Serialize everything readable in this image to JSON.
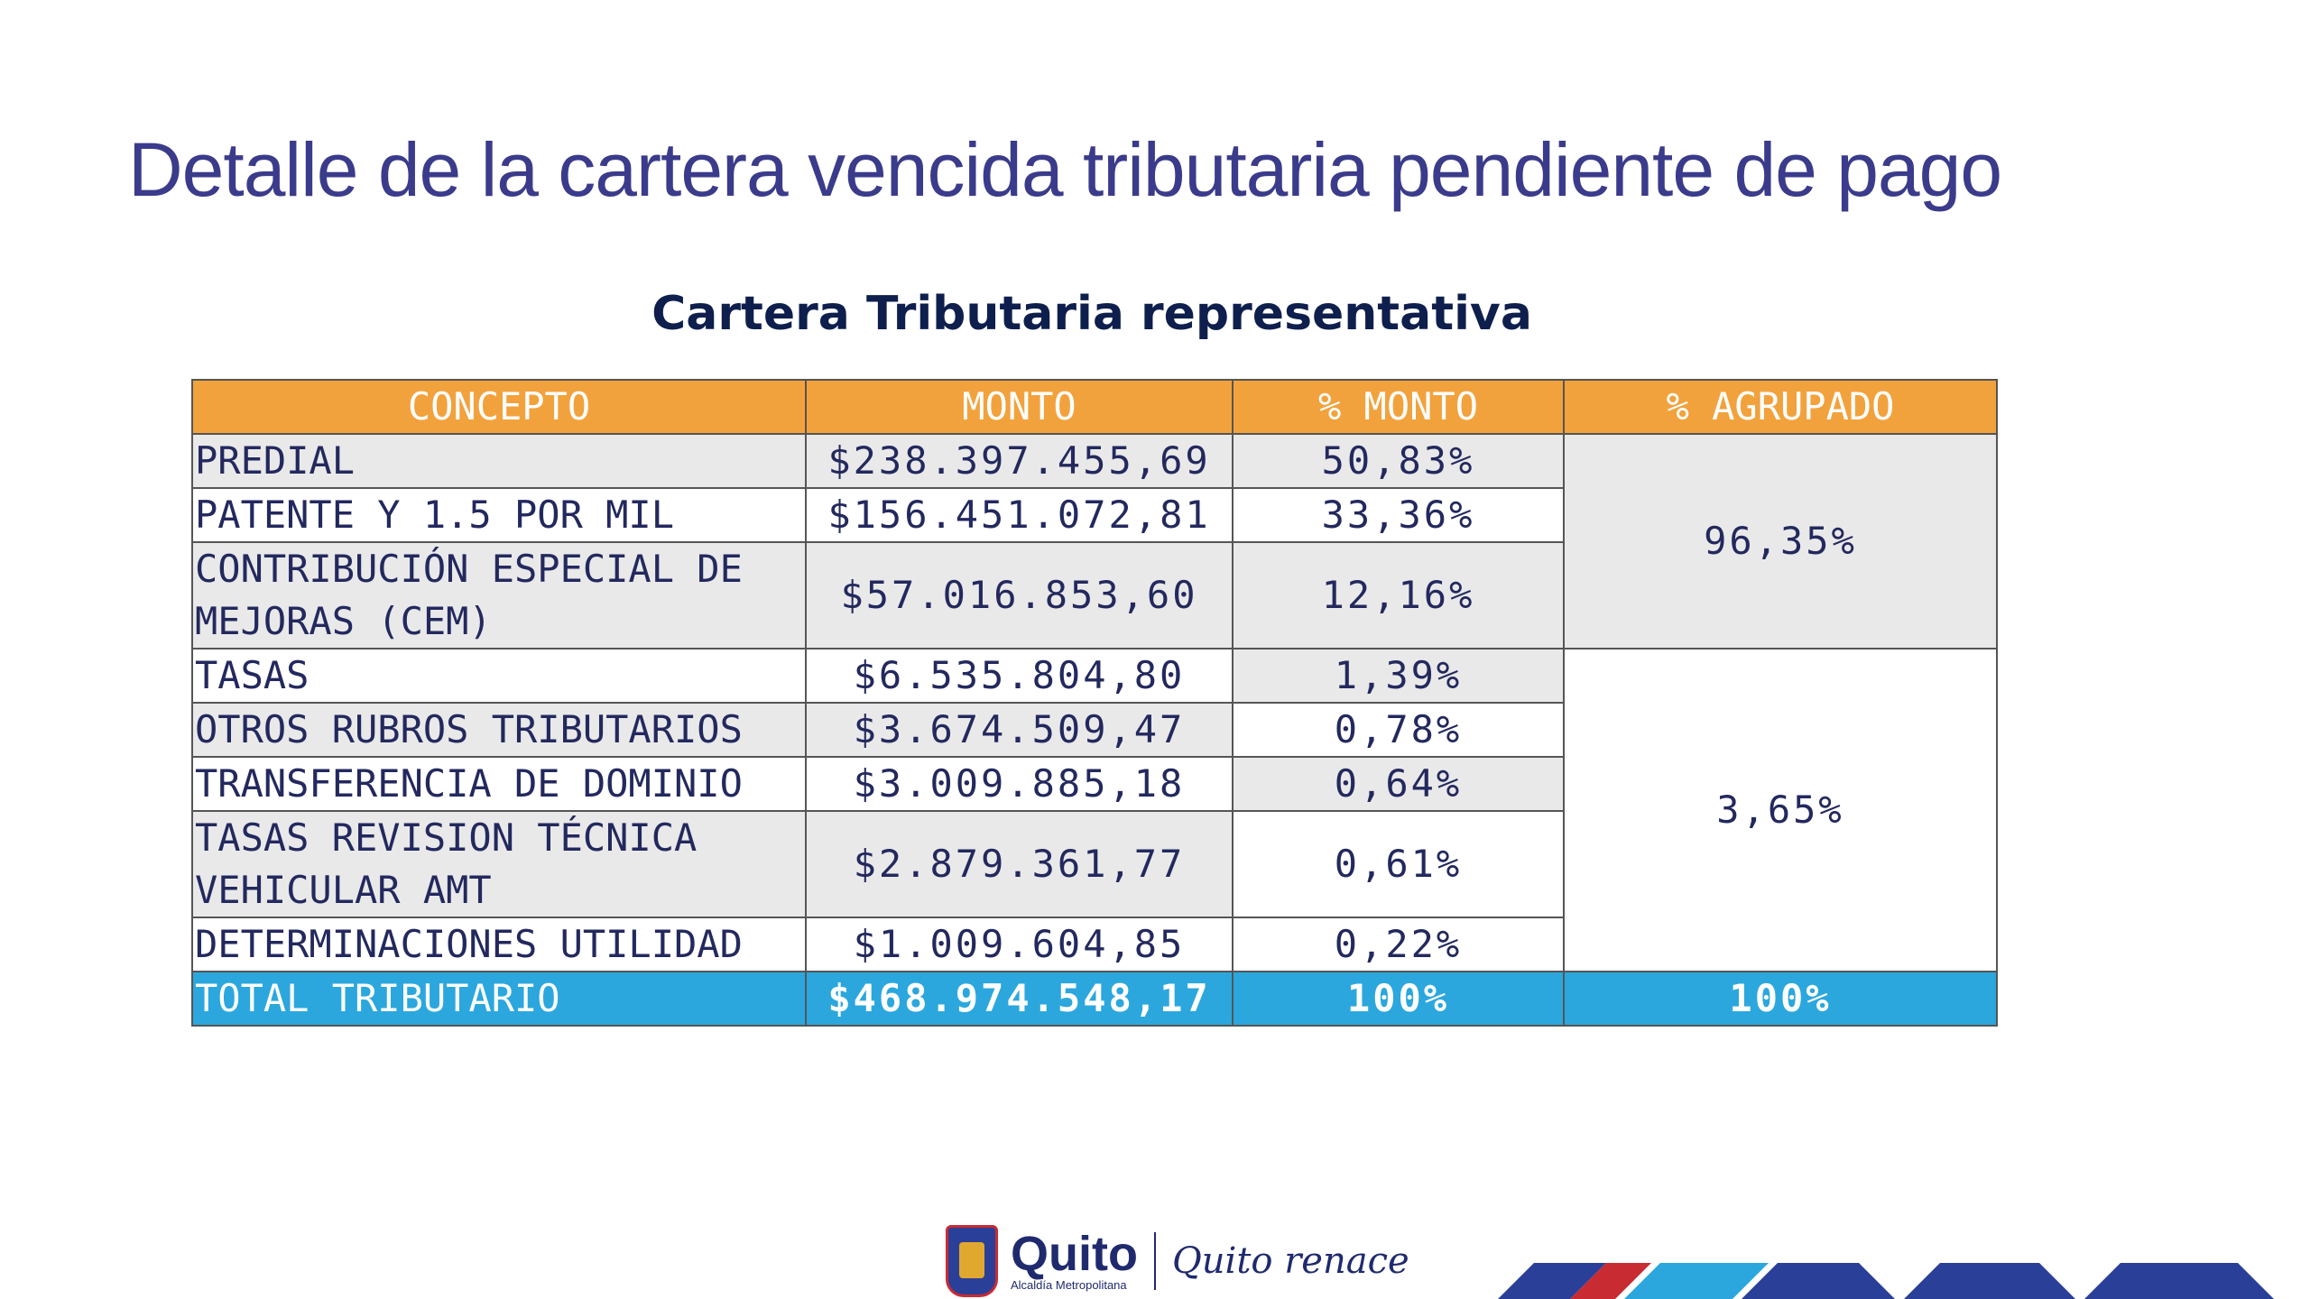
{
  "slide": {
    "title": "Detalle de la cartera vencida tributaria pendiente de pago",
    "subtitle": "Cartera Tributaria representativa"
  },
  "table": {
    "headers": [
      "CONCEPTO",
      "MONTO",
      "% MONTO",
      "% AGRUPADO"
    ],
    "rows": [
      {
        "concepto": "PREDIAL",
        "monto": "$238.397.455,69",
        "pct": "50,83%"
      },
      {
        "concepto": "PATENTE  Y 1.5 POR MIL",
        "monto": "$156.451.072,81",
        "pct": "33,36%"
      },
      {
        "concepto": "CONTRIBUCIÓN ESPECIAL DE MEJORAS (CEM)",
        "monto": "$57.016.853,60",
        "pct": "12,16%"
      },
      {
        "concepto": "TASAS",
        "monto": "$6.535.804,80",
        "pct": "1,39%"
      },
      {
        "concepto": "OTROS RUBROS TRIBUTARIOS",
        "monto": "$3.674.509,47",
        "pct": "0,78%"
      },
      {
        "concepto": "TRANSFERENCIA DE DOMINIO",
        "monto": "$3.009.885,18",
        "pct": "0,64%"
      },
      {
        "concepto": "TASAS REVISION TÉCNICA VEHICULAR AMT",
        "monto": "$2.879.361,77",
        "pct": "0,61%"
      },
      {
        "concepto": "DETERMINACIONES UTILIDAD",
        "monto": "$1.009.604,85",
        "pct": "0,22%"
      }
    ],
    "grouped": [
      "96,35%",
      "3,65%"
    ],
    "total": {
      "concepto": "TOTAL TRIBUTARIO",
      "monto": "$468.974.548,17",
      "pct": "100%",
      "agrupado": "100%"
    }
  },
  "footer": {
    "logo_name": "Quito",
    "logo_sub": "Alcaldía Metropolitana",
    "slogan": "Quito renace",
    "icons": [
      "coat-of-arms-icon"
    ]
  },
  "colors": {
    "title": "#3b3b8c",
    "header_bg": "#f2a23d",
    "total_bg": "#2ba7de",
    "row_gray": "#e9e9e9"
  }
}
